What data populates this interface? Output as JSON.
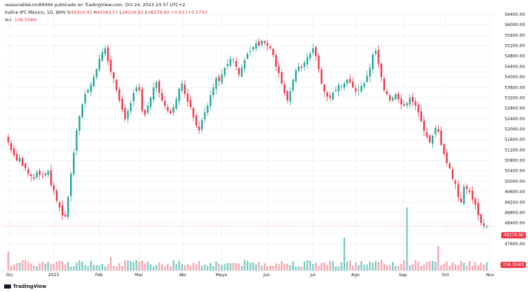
{
  "header": {
    "publisher": "reasonableLion89494 publicado en TradingView.com, Oct 24, 2023 23:37 UTC+2",
    "symbol": "Índice IPC México, 1D, BMV",
    "open_label": "O",
    "open": "48304.40",
    "high_label": "H",
    "high": "48563.07",
    "low_label": "L",
    "low": "48204.81",
    "close_label": "C",
    "close": "48278.80",
    "change": "+0.93 (+0.17%)",
    "vol_label": "Vol.",
    "vol_value": "158.359M"
  },
  "badges": {
    "last_price": "48278.80",
    "last_volume": "158.359M"
  },
  "footer": {
    "brand": "TradingView"
  },
  "colors": {
    "up": "#26a69a",
    "down": "#f23645",
    "up_vol": "#80cbc4",
    "down_vol": "#f7a8b0"
  },
  "chart_data": {
    "type": "candlestick",
    "y_axis_ticks": [
      "56400.00",
      "56000.00",
      "55600.00",
      "55200.00",
      "54800.00",
      "54400.00",
      "54000.00",
      "53600.00",
      "53200.00",
      "52800.00",
      "52400.00",
      "52000.00",
      "51600.00",
      "51200.00",
      "50800.00",
      "50400.00",
      "50000.00",
      "49600.00",
      "49200.00",
      "48800.00",
      "48400.00",
      "48000.00",
      "47600.00"
    ],
    "x_axis_labels": [
      "Dic",
      "2023",
      "Feb",
      "Mar",
      "Abr",
      "Mayo",
      "Jun",
      "Jul",
      "Ago",
      "Sep",
      "Oct",
      "Nov"
    ],
    "ylim": [
      47600,
      56400
    ],
    "close": [
      51500,
      51200,
      51000,
      50800,
      50900,
      50600,
      50500,
      50300,
      50200,
      50100,
      50350,
      50250,
      50200,
      50300,
      50400,
      49850,
      49650,
      49250,
      49000,
      48700,
      48650,
      49400,
      50300,
      51100,
      51950,
      52500,
      52950,
      53350,
      53500,
      53700,
      54000,
      54300,
      54700,
      54950,
      55100,
      54600,
      54200,
      53950,
      53500,
      53100,
      52750,
      52400,
      52700,
      53000,
      53400,
      53600,
      53500,
      52700,
      52550,
      52900,
      53200,
      53600,
      53800,
      53400,
      53100,
      52900,
      52700,
      52600,
      52850,
      53150,
      53550,
      53750,
      53350,
      53050,
      52850,
      52450,
      52150,
      51950,
      52350,
      52650,
      52900,
      53300,
      53600,
      53950,
      53850,
      54100,
      54350,
      54500,
      54700,
      54650,
      54400,
      54100,
      54350,
      54650,
      54900,
      55000,
      55150,
      55300,
      55200,
      55400,
      55300,
      55200,
      55100,
      54850,
      54400,
      54150,
      53750,
      53400,
      53100,
      53450,
      53900,
      54250,
      54400,
      54350,
      54550,
      54750,
      54900,
      55100,
      54800,
      54300,
      53750,
      53450,
      53250,
      53200,
      53400,
      53500,
      53700,
      53650,
      53750,
      53900,
      53800,
      53600,
      53450,
      53500,
      53650,
      53750,
      54050,
      54350,
      54850,
      55000,
      54500,
      54000,
      53500,
      53350,
      53100,
      53200,
      53350,
      53150,
      52950,
      52900,
      53000,
      53200,
      53050,
      52900,
      52650,
      52300,
      51950,
      51700,
      51500,
      51750,
      52050,
      51900,
      51400,
      51050,
      50700,
      50500,
      50100,
      49900,
      49400,
      49200,
      49800,
      49700,
      49600,
      49300,
      49100,
      48700,
      48400,
      48300,
      48279
    ],
    "volume_label": "Vol."
  }
}
